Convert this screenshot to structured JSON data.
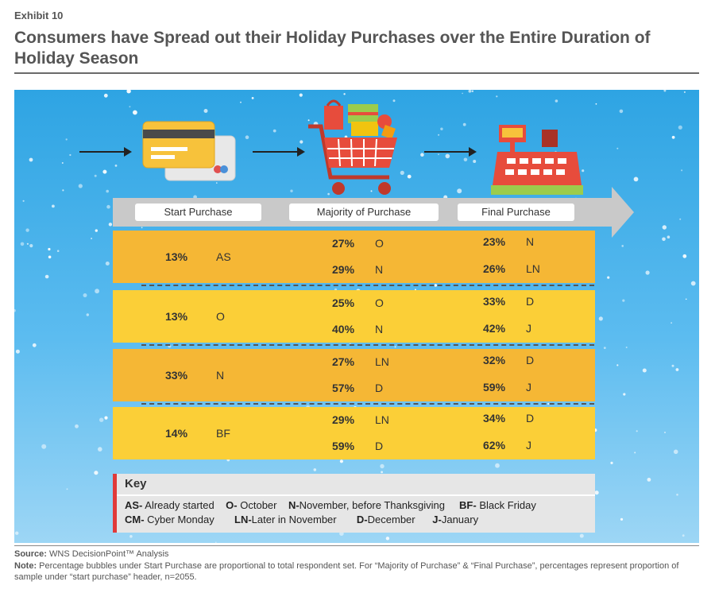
{
  "header": {
    "exhibit": "Exhibit 10",
    "title": "Consumers have Spread out their Holiday Purchases over the Entire Duration of Holiday Season"
  },
  "icons": [
    "credit-card-icon",
    "shopping-cart-icon",
    "cash-register-icon"
  ],
  "colors": {
    "sky": "#3aa9e6",
    "row_dark": "#f5b735",
    "row_light": "#fbcf37",
    "band": "#c9c9c9",
    "key_accent": "#e03a3a"
  },
  "chart_data": {
    "type": "table",
    "stages": [
      "Start Purchase",
      "Majority of Purchase",
      "Final Purchase"
    ],
    "rows": [
      {
        "start": {
          "pct": "13%",
          "code": "AS"
        },
        "majority": [
          {
            "pct": "27%",
            "code": "O"
          },
          {
            "pct": "29%",
            "code": "N"
          }
        ],
        "final": [
          {
            "pct": "23%",
            "code": "N"
          },
          {
            "pct": "26%",
            "code": "LN"
          }
        ]
      },
      {
        "start": {
          "pct": "13%",
          "code": "O"
        },
        "majority": [
          {
            "pct": "25%",
            "code": "O"
          },
          {
            "pct": "40%",
            "code": "N"
          }
        ],
        "final": [
          {
            "pct": "33%",
            "code": "D"
          },
          {
            "pct": "42%",
            "code": "J"
          }
        ]
      },
      {
        "start": {
          "pct": "33%",
          "code": "N"
        },
        "majority": [
          {
            "pct": "27%",
            "code": "LN"
          },
          {
            "pct": "57%",
            "code": "D"
          }
        ],
        "final": [
          {
            "pct": "32%",
            "code": "D"
          },
          {
            "pct": "59%",
            "code": "J"
          }
        ]
      },
      {
        "start": {
          "pct": "14%",
          "code": "BF"
        },
        "majority": [
          {
            "pct": "29%",
            "code": "LN"
          },
          {
            "pct": "59%",
            "code": "D"
          }
        ],
        "final": [
          {
            "pct": "34%",
            "code": "D"
          },
          {
            "pct": "62%",
            "code": "J"
          }
        ]
      }
    ]
  },
  "key": {
    "title": "Key",
    "line1": [
      {
        "code": "AS-",
        "label": " Already started"
      },
      {
        "code": "O-",
        "label": " October"
      },
      {
        "code": "N-",
        "label": "November, before Thanksgiving"
      },
      {
        "code": "BF-",
        "label": " Black Friday"
      }
    ],
    "line2": [
      {
        "code": "CM-",
        "label": " Cyber Monday"
      },
      {
        "code": "LN-",
        "label": "Later in November"
      },
      {
        "code": "D-",
        "label": "December"
      },
      {
        "code": "J-",
        "label": "January"
      }
    ]
  },
  "footer": {
    "source_label": "Source:",
    "source_text": " WNS DecisionPoint™ Analysis",
    "note_label": "Note:",
    "note_text": " Percentage bubbles under Start Purchase are proportional to total respondent set. For “Majority of Purchase” & “Final Purchase”, percentages represent proportion of sample under “start purchase” header, n=2055."
  }
}
